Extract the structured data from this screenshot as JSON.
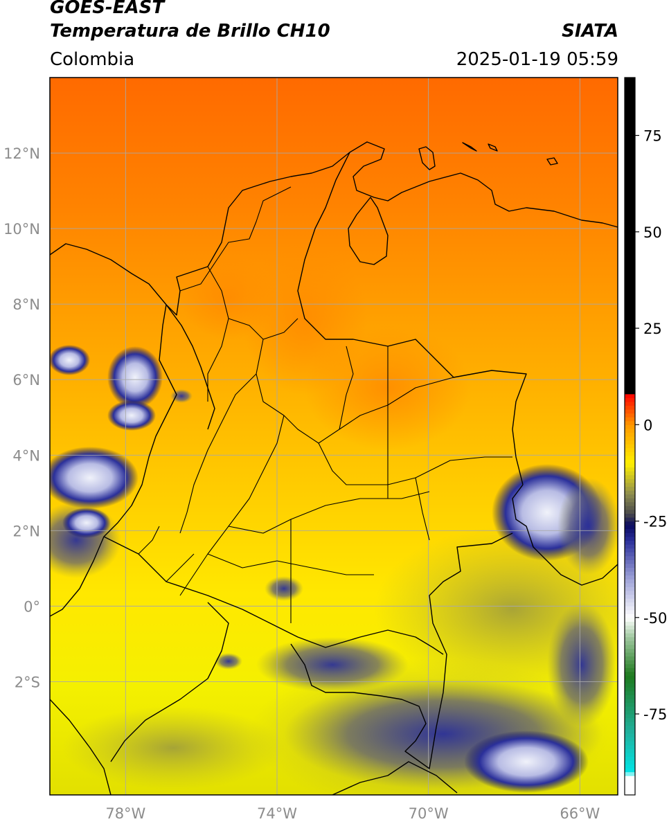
{
  "header": {
    "title_line1": "GOES-EAST",
    "title_line2": "Temperatura de Brillo CH10",
    "region": "Colombia",
    "source": "SIATA",
    "timestamp": "2025-01-19 05:59"
  },
  "map": {
    "lon_range": [
      -80,
      -65
    ],
    "lat_range": [
      -5,
      14
    ],
    "lon_ticks": [
      {
        "value": -78,
        "label": "78°W"
      },
      {
        "value": -74,
        "label": "74°W"
      },
      {
        "value": -70,
        "label": "70°W"
      },
      {
        "value": -66,
        "label": "66°W"
      }
    ],
    "lat_ticks": [
      {
        "value": 12,
        "label": "12°N"
      },
      {
        "value": 10,
        "label": "10°N"
      },
      {
        "value": 8,
        "label": "8°N"
      },
      {
        "value": 6,
        "label": "6°N"
      },
      {
        "value": 4,
        "label": "4°N"
      },
      {
        "value": 2,
        "label": "2°N"
      },
      {
        "value": 0,
        "label": "0°"
      },
      {
        "value": -2,
        "label": "2°S"
      }
    ]
  },
  "colorbar": {
    "range": [
      -96,
      90
    ],
    "ticks": [
      {
        "value": 75,
        "label": "75"
      },
      {
        "value": 50,
        "label": "50"
      },
      {
        "value": 25,
        "label": "25"
      },
      {
        "value": 0,
        "label": "0"
      },
      {
        "value": -25,
        "label": "-25"
      },
      {
        "value": -50,
        "label": "-50"
      },
      {
        "value": -75,
        "label": "-75"
      }
    ],
    "stops": [
      {
        "value": -96,
        "color": "#ffffff"
      },
      {
        "value": -91,
        "color": "#ffffff"
      },
      {
        "value": -90,
        "color": "#00e5e5"
      },
      {
        "value": -80,
        "color": "#20b2a0"
      },
      {
        "value": -65,
        "color": "#1e7a1e"
      },
      {
        "value": -55,
        "color": "#a0c8a0"
      },
      {
        "value": -50,
        "color": "#ffffff"
      },
      {
        "value": -40,
        "color": "#9fa3d8"
      },
      {
        "value": -30,
        "color": "#2a2f9a"
      },
      {
        "value": -26,
        "color": "#0a0a60"
      },
      {
        "value": -23,
        "color": "#4a4a4a"
      },
      {
        "value": -18,
        "color": "#8c8c50"
      },
      {
        "value": -10,
        "color": "#fff000"
      },
      {
        "value": 0,
        "color": "#ff9900"
      },
      {
        "value": 8,
        "color": "#ff0000"
      },
      {
        "value": 8.1,
        "color": "#000000"
      },
      {
        "value": 90,
        "color": "#000000"
      }
    ]
  },
  "colors": {
    "ocean_north": "#ff6a00",
    "land_mid": "#ffb000",
    "south_yellow": "#f2ef00",
    "cloud_blue": "#2a2f9a",
    "cloud_white": "#e6e8f5",
    "grid": "#a8a8a8",
    "border": "#000000"
  }
}
